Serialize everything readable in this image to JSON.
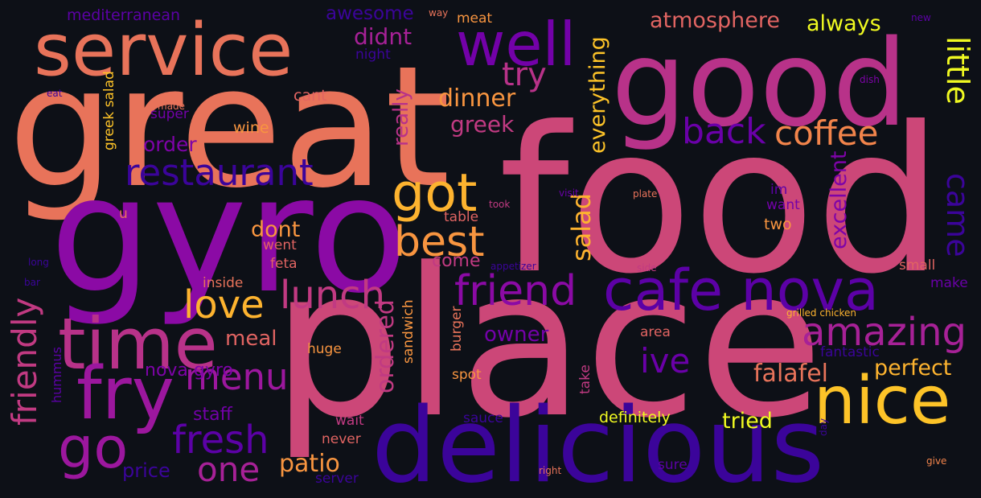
{
  "words": [
    {
      "text": "food",
      "color": "#cc4778"
    },
    {
      "text": "place",
      "color": "#cc4778"
    },
    {
      "text": "great",
      "color": "#e8735a"
    },
    {
      "text": "gyro",
      "color": "#8b0aa5"
    },
    {
      "text": "good",
      "color": "#b83289"
    },
    {
      "text": "delicious",
      "color": "#3b049a"
    },
    {
      "text": "service",
      "color": "#e8735a"
    },
    {
      "text": "well",
      "color": "#7301a8"
    },
    {
      "text": "time",
      "color": "#b83289"
    },
    {
      "text": "fry",
      "color": "#9c179e"
    },
    {
      "text": "nice",
      "color": "#fdc328"
    },
    {
      "text": "cafe nova",
      "color": "#5c01a6"
    },
    {
      "text": "go",
      "color": "#9c179e"
    },
    {
      "text": "got",
      "color": "#fdb32f"
    },
    {
      "text": "best",
      "color": "#f89540"
    },
    {
      "text": "restaurant",
      "color": "#3b049a"
    },
    {
      "text": "friend",
      "color": "#8b0aa5"
    },
    {
      "text": "amazing",
      "color": "#a72197"
    },
    {
      "text": "love",
      "color": "#fdb32f"
    },
    {
      "text": "lunch",
      "color": "#c13a82"
    },
    {
      "text": "one",
      "color": "#a72197"
    },
    {
      "text": "menu",
      "color": "#9c179e"
    },
    {
      "text": "fresh",
      "color": "#5c01a6"
    },
    {
      "text": "coffee",
      "color": "#f2844b"
    },
    {
      "text": "back",
      "color": "#6a00a8"
    },
    {
      "text": "try",
      "color": "#b83289"
    },
    {
      "text": "little",
      "color": "#f0f921"
    },
    {
      "text": "came",
      "color": "#3b049a"
    },
    {
      "text": "friendly",
      "color": "#c13a82"
    },
    {
      "text": "ive",
      "color": "#6a00a8"
    },
    {
      "text": "patio",
      "color": "#f89540"
    },
    {
      "text": "falafel",
      "color": "#e8735a"
    },
    {
      "text": "dinner",
      "color": "#f89540"
    },
    {
      "text": "atmosphere",
      "color": "#e16462"
    },
    {
      "text": "always",
      "color": "#f0f921"
    },
    {
      "text": "didnt",
      "color": "#a72197"
    },
    {
      "text": "greek",
      "color": "#c13a82"
    },
    {
      "text": "salad",
      "color": "#fdb32f"
    },
    {
      "text": "everything",
      "color": "#fdc328"
    },
    {
      "text": "really",
      "color": "#b83289"
    },
    {
      "text": "ordered",
      "color": "#c13a82"
    },
    {
      "text": "excellent",
      "color": "#7e03a8"
    },
    {
      "text": "perfect",
      "color": "#fdb32f"
    },
    {
      "text": "tried",
      "color": "#f0f921"
    },
    {
      "text": "order",
      "color": "#7e03a8"
    },
    {
      "text": "dont",
      "color": "#f89540"
    },
    {
      "text": "come",
      "color": "#c13a82"
    },
    {
      "text": "owner",
      "color": "#7301a8"
    },
    {
      "text": "meal",
      "color": "#e16462"
    },
    {
      "text": "staff",
      "color": "#7301a8"
    },
    {
      "text": "nova gyro",
      "color": "#7e03a8"
    },
    {
      "text": "awesome",
      "color": "#3b049a"
    },
    {
      "text": "definitely",
      "color": "#f0f921"
    },
    {
      "text": "mediterranean",
      "color": "#5c01a6"
    },
    {
      "text": "price",
      "color": "#3b049a"
    },
    {
      "text": "greek salad",
      "color": "#fdc328"
    },
    {
      "text": "super",
      "color": "#7301a8"
    },
    {
      "text": "wine",
      "color": "#f89540"
    },
    {
      "text": "cant",
      "color": "#e16462"
    },
    {
      "text": "meat",
      "color": "#f89540"
    },
    {
      "text": "went",
      "color": "#e16462"
    },
    {
      "text": "feta",
      "color": "#e16462"
    },
    {
      "text": "inside",
      "color": "#e8735a"
    },
    {
      "text": "table",
      "color": "#e16462"
    },
    {
      "text": "two",
      "color": "#f89540"
    },
    {
      "text": "small",
      "color": "#e16462"
    },
    {
      "text": "im",
      "color": "#5c01a6"
    },
    {
      "text": "want",
      "color": "#7301a8"
    },
    {
      "text": "make",
      "color": "#6a00a8"
    },
    {
      "text": "fantastic",
      "color": "#3b049a"
    },
    {
      "text": "area",
      "color": "#e16462"
    },
    {
      "text": "burger",
      "color": "#e8735a"
    },
    {
      "text": "sandwich",
      "color": "#f89540"
    },
    {
      "text": "huge",
      "color": "#f89540"
    },
    {
      "text": "hummus",
      "color": "#5c01a6"
    },
    {
      "text": "spot",
      "color": "#f89540"
    },
    {
      "text": "take",
      "color": "#c13a82"
    },
    {
      "text": "wait",
      "color": "#c13a82"
    },
    {
      "text": "never",
      "color": "#e16462"
    },
    {
      "text": "sauce",
      "color": "#3b049a"
    },
    {
      "text": "sure",
      "color": "#5c01a6"
    },
    {
      "text": "server",
      "color": "#3b049a"
    },
    {
      "text": "night",
      "color": "#3b049a"
    },
    {
      "text": "u",
      "color": "#e8735a"
    },
    {
      "text": "grilled chicken",
      "color": "#fdb32f"
    },
    {
      "text": "appetizer",
      "color": "#3b049a"
    },
    {
      "text": "side",
      "color": "#c13a82"
    },
    {
      "text": "plate",
      "color": "#e8735a"
    },
    {
      "text": "took",
      "color": "#c13a82"
    },
    {
      "text": "visit",
      "color": "#6a00a8"
    },
    {
      "text": "made",
      "color": "#e8735a"
    },
    {
      "text": "eat",
      "color": "#3b049a"
    },
    {
      "text": "way",
      "color": "#e8735a"
    },
    {
      "text": "new",
      "color": "#5c01a6"
    },
    {
      "text": "dish",
      "color": "#7e03a8"
    },
    {
      "text": "long",
      "color": "#3b049a"
    },
    {
      "text": "bar",
      "color": "#3b049a"
    },
    {
      "text": "right",
      "color": "#e8735a"
    },
    {
      "text": "give",
      "color": "#f2844b"
    },
    {
      "text": "day",
      "color": "#3b049a"
    }
  ]
}
